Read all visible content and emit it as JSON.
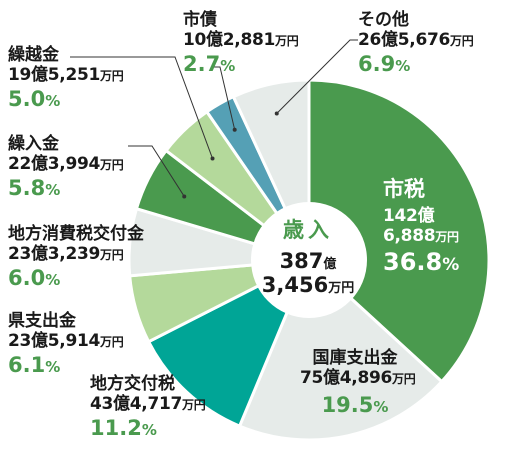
{
  "chart_data": {
    "type": "pie",
    "title": "歳入",
    "total": {
      "oku": "387",
      "oku_unit": "億",
      "man": "3,456",
      "man_unit": "万円"
    },
    "slices": [
      {
        "name": "市税",
        "amount_oku": "142億",
        "amount_man": "6,888",
        "unit": "万円",
        "percent": 36.8,
        "pct_text": "36.8",
        "color": "#4a9a4e"
      },
      {
        "name": "国庫支出金",
        "amount_oku": "75億",
        "amount_man": "4,896",
        "unit": "万円",
        "percent": 19.5,
        "pct_text": "19.5",
        "color": "#e6ebe9"
      },
      {
        "name": "地方交付税",
        "amount_oku": "43億",
        "amount_man": "4,717",
        "unit": "万円",
        "percent": 11.2,
        "pct_text": "11.2",
        "color": "#00a596"
      },
      {
        "name": "県支出金",
        "amount_oku": "23億",
        "amount_man": "5,914",
        "unit": "万円",
        "percent": 6.1,
        "pct_text": "6.1",
        "color": "#b4d99b"
      },
      {
        "name": "地方消費税交付金",
        "amount_oku": "23億",
        "amount_man": "3,239",
        "unit": "万円",
        "percent": 6.0,
        "pct_text": "6.0",
        "color": "#e6ebe9"
      },
      {
        "name": "繰入金",
        "amount_oku": "22億",
        "amount_man": "3,994",
        "unit": "万円",
        "percent": 5.8,
        "pct_text": "5.8",
        "color": "#4a9a4e"
      },
      {
        "name": "繰越金",
        "amount_oku": "19億",
        "amount_man": "5,251",
        "unit": "万円",
        "percent": 5.0,
        "pct_text": "5.0",
        "color": "#b4d99b"
      },
      {
        "name": "市債",
        "amount_oku": "10億",
        "amount_man": "2,881",
        "unit": "万円",
        "percent": 2.7,
        "pct_text": "2.7",
        "color": "#55a0b5"
      },
      {
        "name": "その他",
        "amount_oku": "26億",
        "amount_man": "5,676",
        "unit": "万円",
        "percent": 6.9,
        "pct_text": "6.9",
        "color": "#e6ebe9"
      }
    ],
    "pct_sign": "%"
  }
}
